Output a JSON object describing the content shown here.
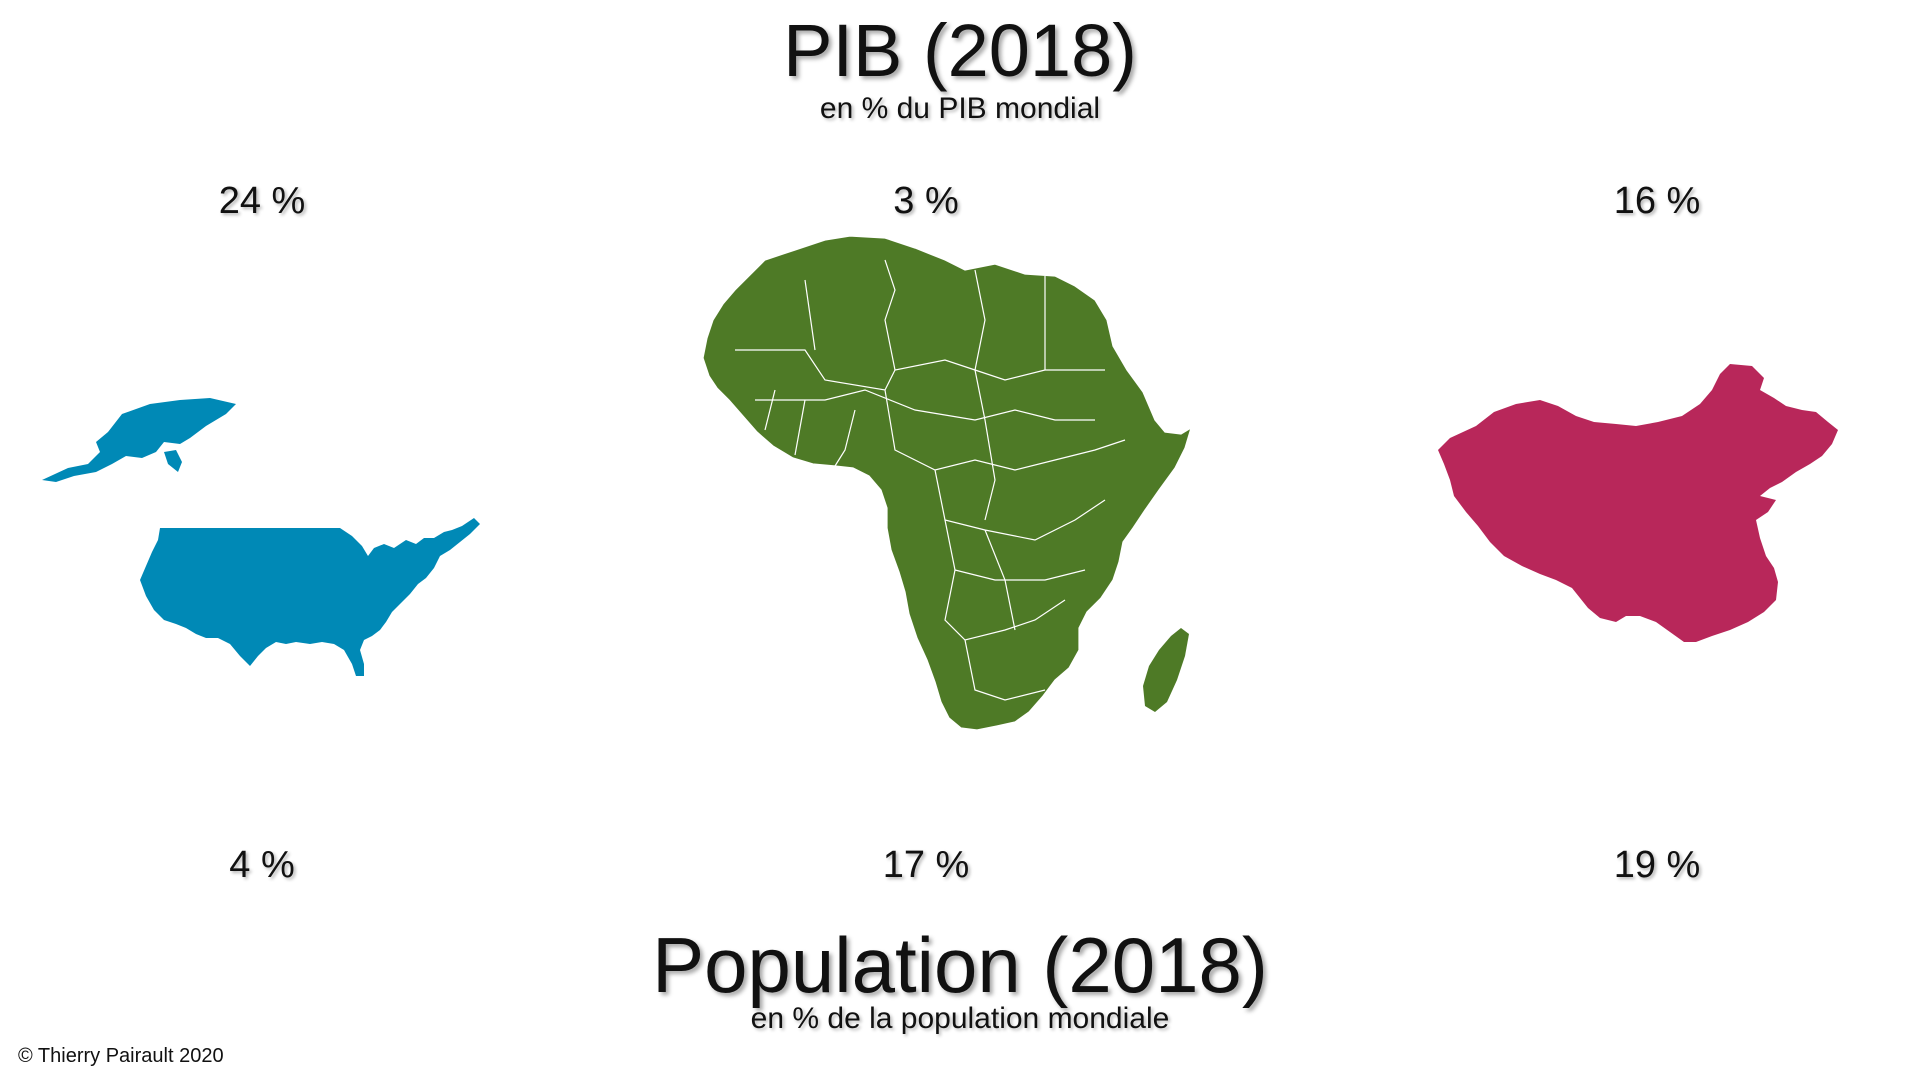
{
  "gdp": {
    "title": "PIB (2018)",
    "subtitle": "en % du PIB mondial",
    "usa": "24 %",
    "africa": "3 %",
    "china": "16 %"
  },
  "population": {
    "title": "Population (2018)",
    "subtitle": "en % de la population mondiale",
    "usa": "4 %",
    "africa": "17 %",
    "china": "19 %"
  },
  "colors": {
    "usa": "#0089b6",
    "africa": "#4e7a26",
    "china": "#b8275a"
  },
  "maps": {
    "usa": "usa-map",
    "africa": "africa-map",
    "china": "china-map"
  },
  "copyright": "© Thierry Pairault 2020"
}
